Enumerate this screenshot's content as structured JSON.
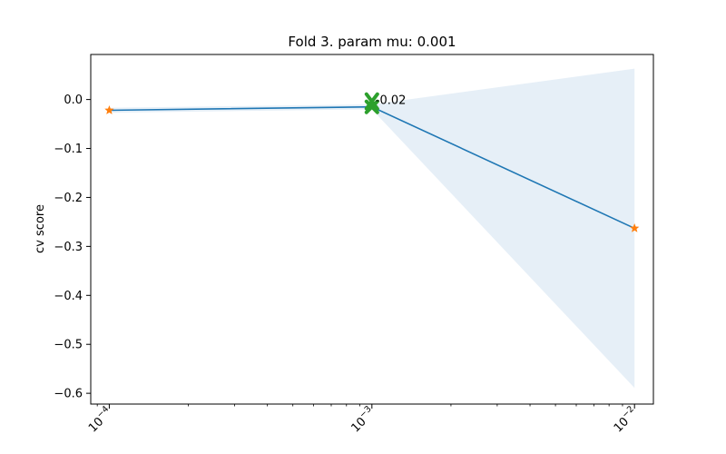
{
  "chart_data": {
    "type": "line",
    "title": "Fold 3. param mu: 0.001",
    "xlabel": "",
    "ylabel": "cv score",
    "xscale": "log",
    "xlim": [
      8.5e-05,
      0.0118
    ],
    "ylim": [
      -0.622,
      0.092
    ],
    "x_ticks": [
      {
        "value": 0.0001,
        "base": "10",
        "exp": "−4"
      },
      {
        "value": 0.001,
        "base": "10",
        "exp": "−3"
      },
      {
        "value": 0.01,
        "base": "10",
        "exp": "−2"
      }
    ],
    "y_ticks": [
      {
        "value": 0.0,
        "label": "0.0"
      },
      {
        "value": -0.1,
        "label": "−0.1"
      },
      {
        "value": -0.2,
        "label": "−0.2"
      },
      {
        "value": -0.3,
        "label": "−0.3"
      },
      {
        "value": -0.4,
        "label": "−0.4"
      },
      {
        "value": -0.5,
        "label": "−0.5"
      },
      {
        "value": -0.6,
        "label": "−0.6"
      }
    ],
    "grid": false,
    "series": [
      {
        "x": [
          0.0001,
          0.001,
          0.01
        ],
        "y": [
          -0.022,
          -0.015,
          -0.263
        ],
        "upper": [
          -0.017,
          -0.01,
          0.063
        ],
        "lower": [
          -0.027,
          -0.02,
          -0.589
        ]
      }
    ],
    "best": {
      "x": 0.001,
      "y": -0.015,
      "label": "-0.02"
    },
    "colors": {
      "line": "#1f77b4",
      "band": "#dce8f4",
      "markers": "#ff7f0e",
      "best": "#2ca02c"
    }
  }
}
